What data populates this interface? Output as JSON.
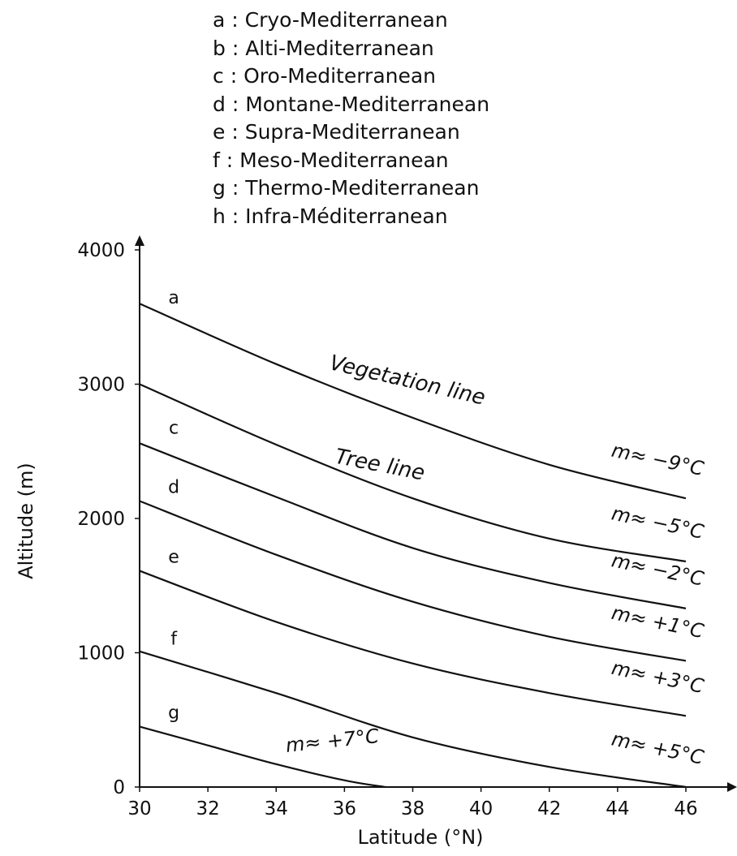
{
  "legend": [
    {
      "letter": "a",
      "text": "Cryo-Mediterranean"
    },
    {
      "letter": "b",
      "text": "Alti-Mediterranean"
    },
    {
      "letter": "c",
      "text": "Oro-Mediterranean"
    },
    {
      "letter": "d",
      "text": "Montane-Mediterranean"
    },
    {
      "letter": "e",
      "text": "Supra-Mediterranean"
    },
    {
      "letter": "f",
      "text": "Meso-Mediterranean"
    },
    {
      "letter": "g",
      "text": "Thermo-Mediterranean"
    },
    {
      "letter": "h",
      "text": "Infra-Méditerranean"
    }
  ],
  "chart_data": {
    "type": "line",
    "xlabel": "Latitude (°N)",
    "ylabel": "Altitude (m)",
    "xlim": [
      30,
      46
    ],
    "ylim": [
      0,
      4000
    ],
    "xticks": [
      30,
      32,
      34,
      36,
      38,
      40,
      42,
      44,
      46
    ],
    "yticks": [
      0,
      1000,
      2000,
      3000,
      4000
    ],
    "grid": false,
    "series": [
      {
        "label": "m≈ −9°C",
        "boundary_label": "Vegetation line",
        "x": [
          30,
          34,
          38,
          42,
          46
        ],
        "y": [
          3600,
          3150,
          2750,
          2400,
          2150
        ]
      },
      {
        "label": "m≈ −5°C",
        "boundary_label": "Tree line",
        "x": [
          30,
          34,
          38,
          42,
          46
        ],
        "y": [
          3000,
          2550,
          2150,
          1850,
          1680
        ]
      },
      {
        "label": "m≈ −2°C",
        "x": [
          30,
          34,
          38,
          42,
          46
        ],
        "y": [
          2560,
          2160,
          1780,
          1520,
          1330
        ]
      },
      {
        "label": "m≈ +1°C",
        "x": [
          30,
          34,
          38,
          42,
          46
        ],
        "y": [
          2130,
          1730,
          1380,
          1120,
          940
        ]
      },
      {
        "label": "m≈ +3°C",
        "x": [
          30,
          34,
          38,
          42,
          46
        ],
        "y": [
          1610,
          1230,
          920,
          700,
          530
        ]
      },
      {
        "label": "m≈ +5°C",
        "x": [
          30,
          34,
          38,
          42,
          46
        ],
        "y": [
          1010,
          700,
          370,
          150,
          0
        ]
      },
      {
        "label": "m≈ +7°C",
        "x": [
          30,
          32,
          34,
          36,
          37.2
        ],
        "y": [
          450,
          310,
          170,
          50,
          0
        ]
      }
    ],
    "zones": [
      {
        "letter": "a",
        "x": 31.0,
        "y": 3600
      },
      {
        "letter": "c",
        "x": 31.0,
        "y": 2630
      },
      {
        "letter": "d",
        "x": 31.0,
        "y": 2190
      },
      {
        "letter": "e",
        "x": 31.0,
        "y": 1670
      },
      {
        "letter": "f",
        "x": 31.0,
        "y": 1060
      },
      {
        "letter": "g",
        "x": 31.0,
        "y": 510
      }
    ]
  }
}
